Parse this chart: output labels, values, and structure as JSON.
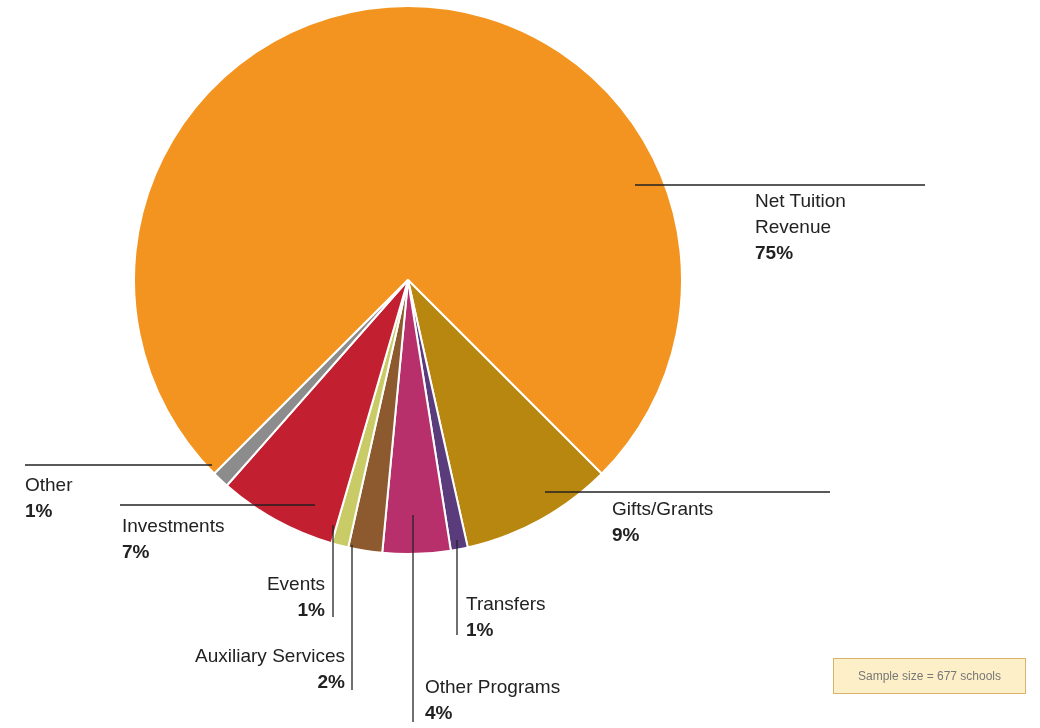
{
  "chart_data": {
    "type": "pie",
    "categories": [
      "Net Tuition Revenue",
      "Gifts/Grants",
      "Transfers",
      "Other Programs",
      "Auxiliary Services",
      "Events",
      "Investments",
      "Other"
    ],
    "values": [
      75,
      9,
      1,
      4,
      2,
      1,
      7,
      1
    ],
    "colors": [
      "#f39420",
      "#b8870f",
      "#5a3c7c",
      "#b7306c",
      "#8c5a2e",
      "#c9cc66",
      "#c21f30",
      "#8c8c8c"
    ],
    "value_labels": [
      "75%",
      "9%",
      "1%",
      "4%",
      "2%",
      "1%",
      "7%",
      "1%"
    ],
    "annotations": [
      "Sample size = 677 schools"
    ]
  }
}
